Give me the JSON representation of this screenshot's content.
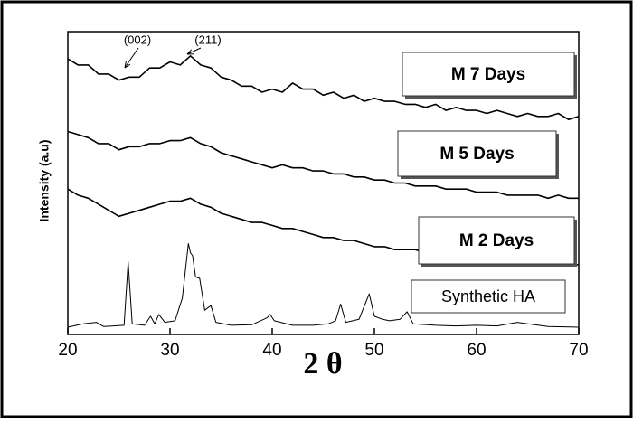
{
  "chart_data": {
    "type": "line",
    "xlabel": "2 θ",
    "ylabel": "Intensity (a.u)",
    "annotations": [
      "(002)",
      "(211)"
    ],
    "xlim": [
      20,
      70
    ],
    "xticks": [
      20,
      30,
      40,
      50,
      60,
      70
    ],
    "ylim": [
      0,
      100
    ],
    "x": [
      20,
      21,
      22,
      23,
      24,
      25,
      26,
      27,
      28,
      29,
      30,
      31,
      32,
      33,
      34,
      35,
      36,
      37,
      38,
      39,
      40,
      41,
      42,
      43,
      44,
      45,
      46,
      47,
      48,
      49,
      50,
      51,
      52,
      53,
      54,
      55,
      56,
      57,
      58,
      59,
      60,
      61,
      62,
      63,
      64,
      65,
      66,
      67,
      68,
      69,
      70
    ],
    "series": [
      {
        "name": "M 7 Days",
        "color": "#000000",
        "values": [
          91,
          89,
          89,
          86,
          86,
          84,
          85,
          85,
          88,
          88,
          90,
          89,
          92,
          89,
          88,
          85,
          84,
          82,
          82,
          80,
          81,
          80,
          83,
          81,
          81,
          79,
          80,
          78,
          79,
          77,
          78,
          77,
          77,
          76,
          76,
          75,
          76,
          74,
          75,
          74,
          74,
          73,
          74,
          73,
          72,
          73,
          72,
          72,
          73,
          71,
          72
        ]
      },
      {
        "name": "M 5 Days",
        "color": "#000000",
        "values": [
          67,
          66,
          65,
          63,
          63,
          61,
          62,
          62,
          63,
          63,
          64,
          64,
          65,
          63,
          62,
          60,
          59,
          58,
          57,
          56,
          55,
          56,
          55,
          55,
          54,
          54,
          53,
          53,
          52,
          52,
          51,
          51,
          50,
          50,
          49,
          49,
          49,
          48,
          48,
          48,
          47,
          47,
          47,
          46,
          46,
          46,
          46,
          45,
          46,
          45,
          45
        ]
      },
      {
        "name": "M 2 Days",
        "color": "#000000",
        "values": [
          48,
          46,
          45,
          43,
          41,
          39,
          40,
          41,
          42,
          43,
          44,
          44,
          45,
          43,
          42,
          40,
          39,
          38,
          37,
          37,
          36,
          35,
          35,
          34,
          33,
          32,
          32,
          31,
          31,
          30,
          29,
          29,
          28,
          28,
          28,
          27,
          27,
          27,
          26,
          26,
          25,
          25,
          25,
          25,
          24,
          24,
          24,
          24,
          23,
          23,
          23
        ]
      },
      {
        "name": "Synthetic HA",
        "color": "#000000",
        "x": [
          20,
          21.5,
          22.8,
          23.5,
          25.5,
          25.9,
          26.3,
          27.5,
          28.1,
          28.5,
          28.9,
          29.5,
          30.5,
          31.2,
          31.8,
          32.0,
          32.2,
          32.5,
          32.9,
          33.4,
          34.0,
          34.5,
          36,
          38,
          39.5,
          39.8,
          40.2,
          42,
          44,
          45.5,
          46.2,
          46.7,
          47.2,
          48.5,
          49.5,
          50,
          50.8,
          51.5,
          52.5,
          53.2,
          53.8,
          56,
          58,
          60,
          62,
          64,
          65,
          67,
          70
        ],
        "values": [
          2.4,
          3.5,
          4,
          2.6,
          3,
          24,
          3.5,
          3,
          6,
          3.5,
          6.6,
          4,
          4.5,
          12,
          30,
          27,
          26,
          19,
          18.5,
          8,
          9.5,
          4,
          3,
          3.2,
          5.5,
          6.6,
          4.5,
          3,
          3,
          3.5,
          4.5,
          10,
          4,
          5,
          13.4,
          6,
          5,
          4.5,
          5,
          7.5,
          3.5,
          3,
          2.8,
          3,
          2.8,
          4,
          3.5,
          2.6,
          2.4
        ]
      }
    ]
  }
}
